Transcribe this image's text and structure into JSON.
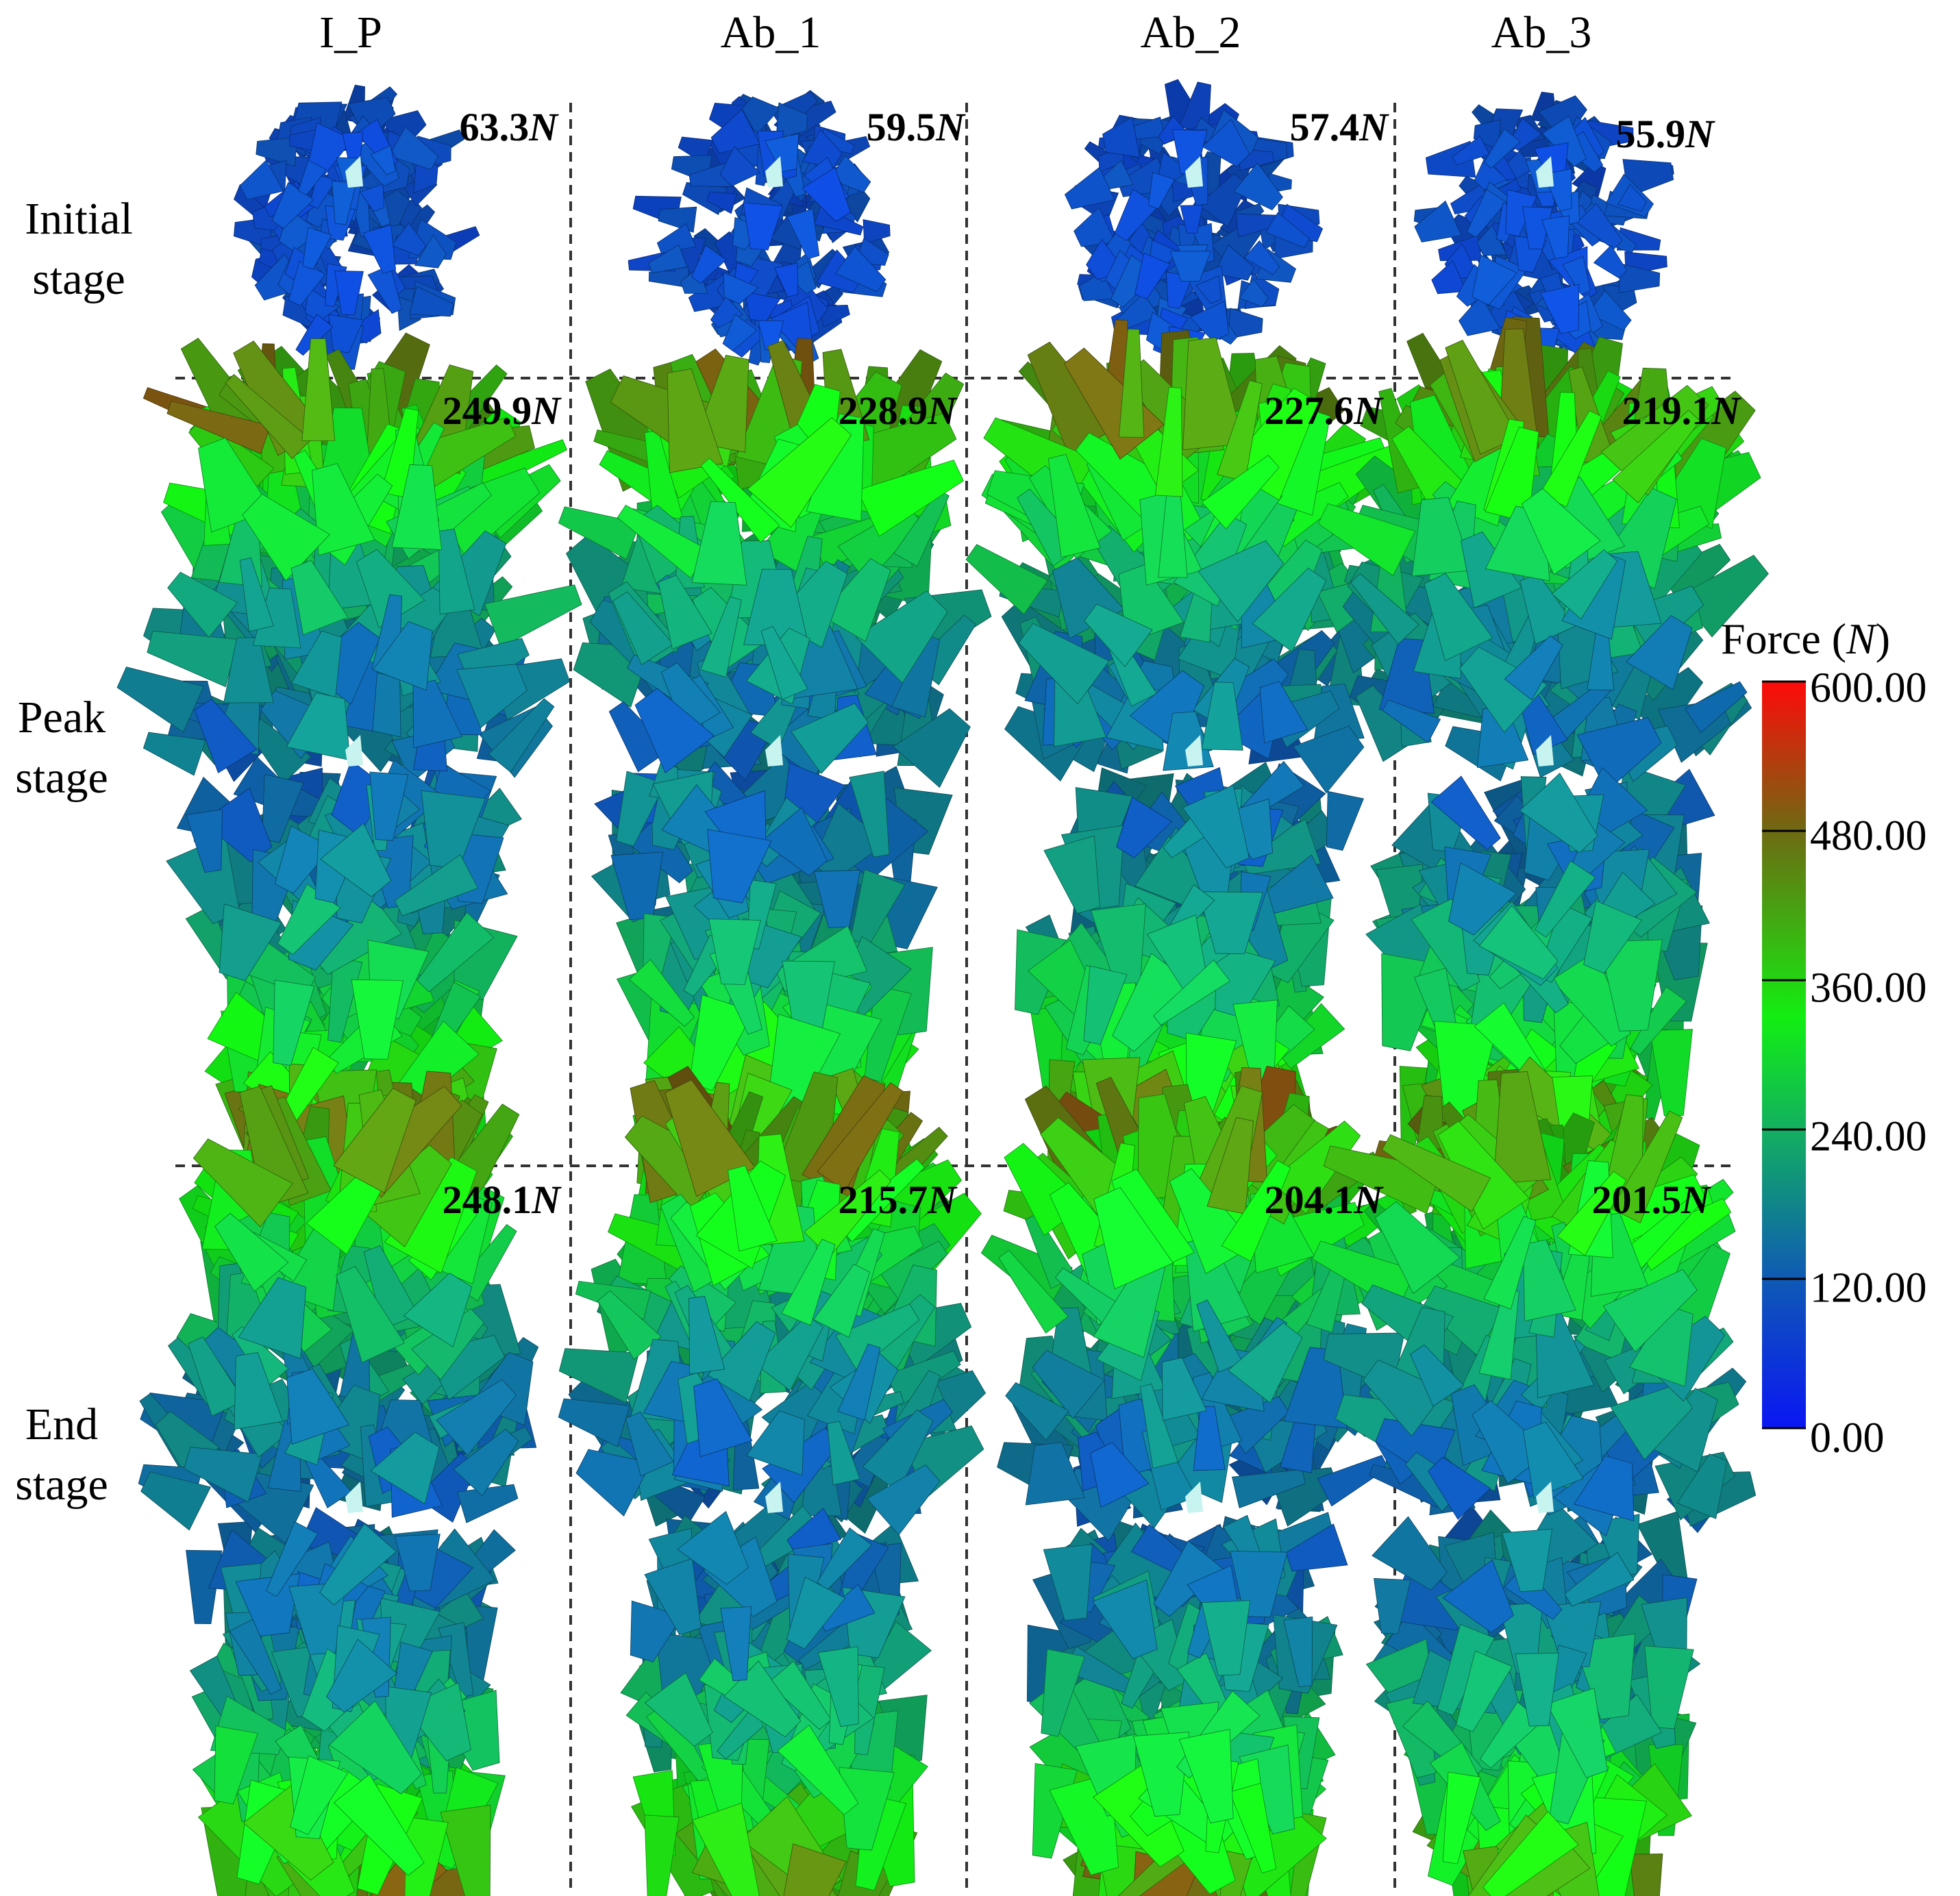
{
  "columns": [
    "I_P",
    "Ab_1",
    "Ab_2",
    "Ab_3"
  ],
  "rows": [
    {
      "label": "Initial\nstage",
      "forces": [
        "63.3",
        "59.5",
        "57.4",
        "55.9"
      ],
      "shape": "sphere"
    },
    {
      "label": "Peak\nstage",
      "forces": [
        "249.9",
        "228.9",
        "227.6",
        "219.1"
      ],
      "shape": "peak"
    },
    {
      "label": "End\nstage",
      "forces": [
        "248.1",
        "215.7",
        "204.1",
        "201.5"
      ],
      "shape": "end"
    }
  ],
  "force_unit": "N",
  "colorbar": {
    "title": "Force (",
    "title_unit": "N",
    "title_close": ")",
    "min": 0,
    "max": 600,
    "ticks": [
      "600.00",
      "480.00",
      "360.00",
      "240.00",
      "120.00",
      "0.00"
    ],
    "colors": {
      "0": "#0a16f4",
      "120": "#0f5ab4",
      "240": "#12b060",
      "360": "#12ee12",
      "480": "#6e6a12",
      "600": "#ff0a0a"
    }
  }
}
